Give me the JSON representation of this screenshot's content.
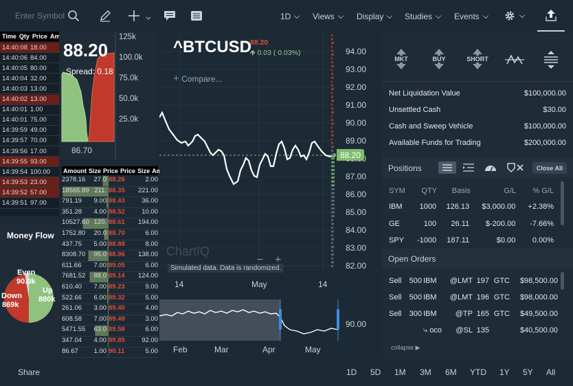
{
  "toolbar": {
    "search_placeholder": "Enter Symbol",
    "interval": "1D",
    "menus": [
      "Views",
      "Display",
      "Studies",
      "Events"
    ]
  },
  "time_and_sales": {
    "headers": [
      "Time",
      "Qty",
      "Price",
      "Amount"
    ],
    "rows": [
      {
        "time": "14:40:08",
        "qty": "18.00",
        "dir": "down"
      },
      {
        "time": "14:40:06",
        "qty": "84.00",
        "dir": "up"
      },
      {
        "time": "14:40:05",
        "qty": "80.00",
        "dir": "up"
      },
      {
        "time": "14:40:04",
        "qty": "32.00",
        "dir": "up"
      },
      {
        "time": "14:40:03",
        "qty": "13.00",
        "dir": "up"
      },
      {
        "time": "14:40:02",
        "qty": "13.00",
        "dir": "down"
      },
      {
        "time": "14:40:01",
        "qty": "1.00",
        "dir": "up"
      },
      {
        "time": "14:40:01",
        "qty": "75.00",
        "dir": "up"
      },
      {
        "time": "14:39:59",
        "qty": "49.00",
        "dir": "up"
      },
      {
        "time": "14:39:57",
        "qty": "70.00",
        "dir": "up"
      },
      {
        "time": "14:39:56",
        "qty": "17.00",
        "dir": "up"
      },
      {
        "time": "14:39:55",
        "qty": "93.00",
        "dir": "down"
      },
      {
        "time": "14:39:54",
        "qty": "100.00",
        "dir": "up"
      },
      {
        "time": "14:39:53",
        "qty": "23.00",
        "dir": "down"
      },
      {
        "time": "14:39:52",
        "qty": "57.00",
        "dir": "down"
      },
      {
        "time": "14:39:51",
        "qty": "97.00",
        "dir": "up"
      }
    ]
  },
  "depth_chart": {
    "price": "88.20",
    "spread": "Spread: 0.18",
    "y_ticks": [
      "125k",
      "100.0k",
      "75.0k",
      "50.0k",
      "25.0k"
    ],
    "x_label": "86.70"
  },
  "order_book": {
    "headers": [
      "Amount",
      "Size",
      "Price",
      "Price",
      "Size",
      "Amount"
    ],
    "rows": [
      {
        "b_amt": "2378.16",
        "b_size": "27.0",
        "a_price": "88.26",
        "a_size": "2.00"
      },
      {
        "b_amt": "18565.89",
        "b_size": "211.",
        "a_price": "88.35",
        "a_size": "221.00"
      },
      {
        "b_amt": "791.19",
        "b_size": "9.00",
        "a_price": "88.43",
        "a_size": "36.00"
      },
      {
        "b_amt": "351.28",
        "b_size": "4.00",
        "a_price": "88.52",
        "a_size": "10.00"
      },
      {
        "b_amt": "10527.60",
        "b_size": "120.",
        "a_price": "88.61",
        "a_size": "194.00"
      },
      {
        "b_amt": "1752.80",
        "b_size": "20.0",
        "a_price": "88.70",
        "a_size": "6.00"
      },
      {
        "b_amt": "437.75",
        "b_size": "5.00",
        "a_price": "88.88",
        "a_size": "8.00"
      },
      {
        "b_amt": "8308.70",
        "b_size": "95.0",
        "a_price": "88.96",
        "a_size": "138.00"
      },
      {
        "b_amt": "611.66",
        "b_size": "7.00",
        "a_price": "89.05",
        "a_size": "6.00"
      },
      {
        "b_amt": "7681.52",
        "b_size": "88.0",
        "a_price": "89.14",
        "a_size": "124.00"
      },
      {
        "b_amt": "610.40",
        "b_size": "7.00",
        "a_price": "89.23",
        "a_size": "9.00"
      },
      {
        "b_amt": "522.66",
        "b_size": "6.00",
        "a_price": "89.32",
        "a_size": "5.00"
      },
      {
        "b_amt": "261.06",
        "b_size": "3.00",
        "a_price": "89.40",
        "a_size": "4.00"
      },
      {
        "b_amt": "608.58",
        "b_size": "7.00",
        "a_price": "89.49",
        "a_size": "3.00"
      },
      {
        "b_amt": "5471.55",
        "b_size": "63.0",
        "a_price": "89.58",
        "a_size": "6.00"
      },
      {
        "b_amt": "347.04",
        "b_size": "4.00",
        "a_price": "89.85",
        "a_size": "92.00"
      },
      {
        "b_amt": "86.67",
        "b_size": "1.00",
        "a_price": "90.11",
        "a_size": "5.00"
      }
    ]
  },
  "money_flow": {
    "title": "Money Flow",
    "even_label": "Even",
    "even_value": "90.0k",
    "down_label": "Down",
    "down_value": "869k",
    "up_label": "Up",
    "up_value": "880k",
    "colors": {
      "down": "#c0392b",
      "up": "#8fc27f",
      "even": "#d0d8de"
    }
  },
  "chart": {
    "symbol": "^BTCUSD",
    "price": "88.20",
    "change": "0.03 ( 0.03%)",
    "compare": "Compare...",
    "watermark": "ChartIQ",
    "sim_note": "Simulated data.  Data is randomized.",
    "y_ticks": [
      "94.00",
      "93.00",
      "92.00",
      "91.00",
      "90.00",
      "89.00",
      "88.00",
      "87.00",
      "86.00",
      "85.00",
      "84.00",
      "83.00",
      "82.00"
    ],
    "flag": "88.20",
    "x_ticks": [
      "14",
      "May",
      "14"
    ],
    "nav_x_ticks": [
      "Feb",
      "Mar",
      "Apr",
      "May"
    ],
    "nav_y_tick": "90.00",
    "colors": {
      "up": "#7fbd6f",
      "down": "#e04a3a"
    }
  },
  "trade_buttons": [
    "MKT",
    "BUY",
    "SHORT"
  ],
  "account": [
    {
      "label": "Net Liquidation Value",
      "value": "$100,000.00"
    },
    {
      "label": "Unsettled Cash",
      "value": "$30.00"
    },
    {
      "label": "Cash and Sweep Vehicle",
      "value": "$100,000.00"
    },
    {
      "label": "Available Funds for Trading",
      "value": "$200,000.00"
    }
  ],
  "positions": {
    "title": "Positions",
    "close_all": "Close All",
    "headers": [
      "SYM",
      "QTY",
      "Basis",
      "G/L",
      "% G/L"
    ],
    "rows": [
      {
        "sym": "IBM",
        "qty": "1000",
        "basis": "126.13",
        "gl": "$3,000.00",
        "pct": "+2.38%"
      },
      {
        "sym": "GE",
        "qty": "100",
        "basis": "26.11",
        "gl": "$-200.00",
        "pct": "-7.66%"
      },
      {
        "sym": "SPY",
        "qty": "-1000",
        "basis": "187.11",
        "gl": "$0.00",
        "pct": "0.00%"
      }
    ]
  },
  "open_orders": {
    "title": "Open Orders",
    "rows": [
      {
        "side": "Sell",
        "qty": "500",
        "sym": "IBM",
        "type": "@LMT",
        "price": "197",
        "tif": "GTC",
        "value": "$98,500.00"
      },
      {
        "side": "Sell",
        "qty": "500",
        "sym": "IBM",
        "type": "@LMT",
        "price": "196",
        "tif": "GTC",
        "value": "$98,000.00"
      },
      {
        "side": "Sell",
        "qty": "300",
        "sym": "IBM",
        "type": "@TP",
        "price": "165",
        "tif": "GTC",
        "value": "$49,500.00"
      },
      {
        "side": "",
        "qty": "",
        "sym": "⤷ oco",
        "type": "@SL",
        "price": "135",
        "tif": "",
        "value": "$40,500.00"
      }
    ],
    "collapse": "collapse"
  },
  "footer": {
    "share": "Share",
    "ranges": [
      "1D",
      "5D",
      "1M",
      "3M",
      "6M",
      "YTD",
      "1Y",
      "5Y",
      "All"
    ]
  }
}
